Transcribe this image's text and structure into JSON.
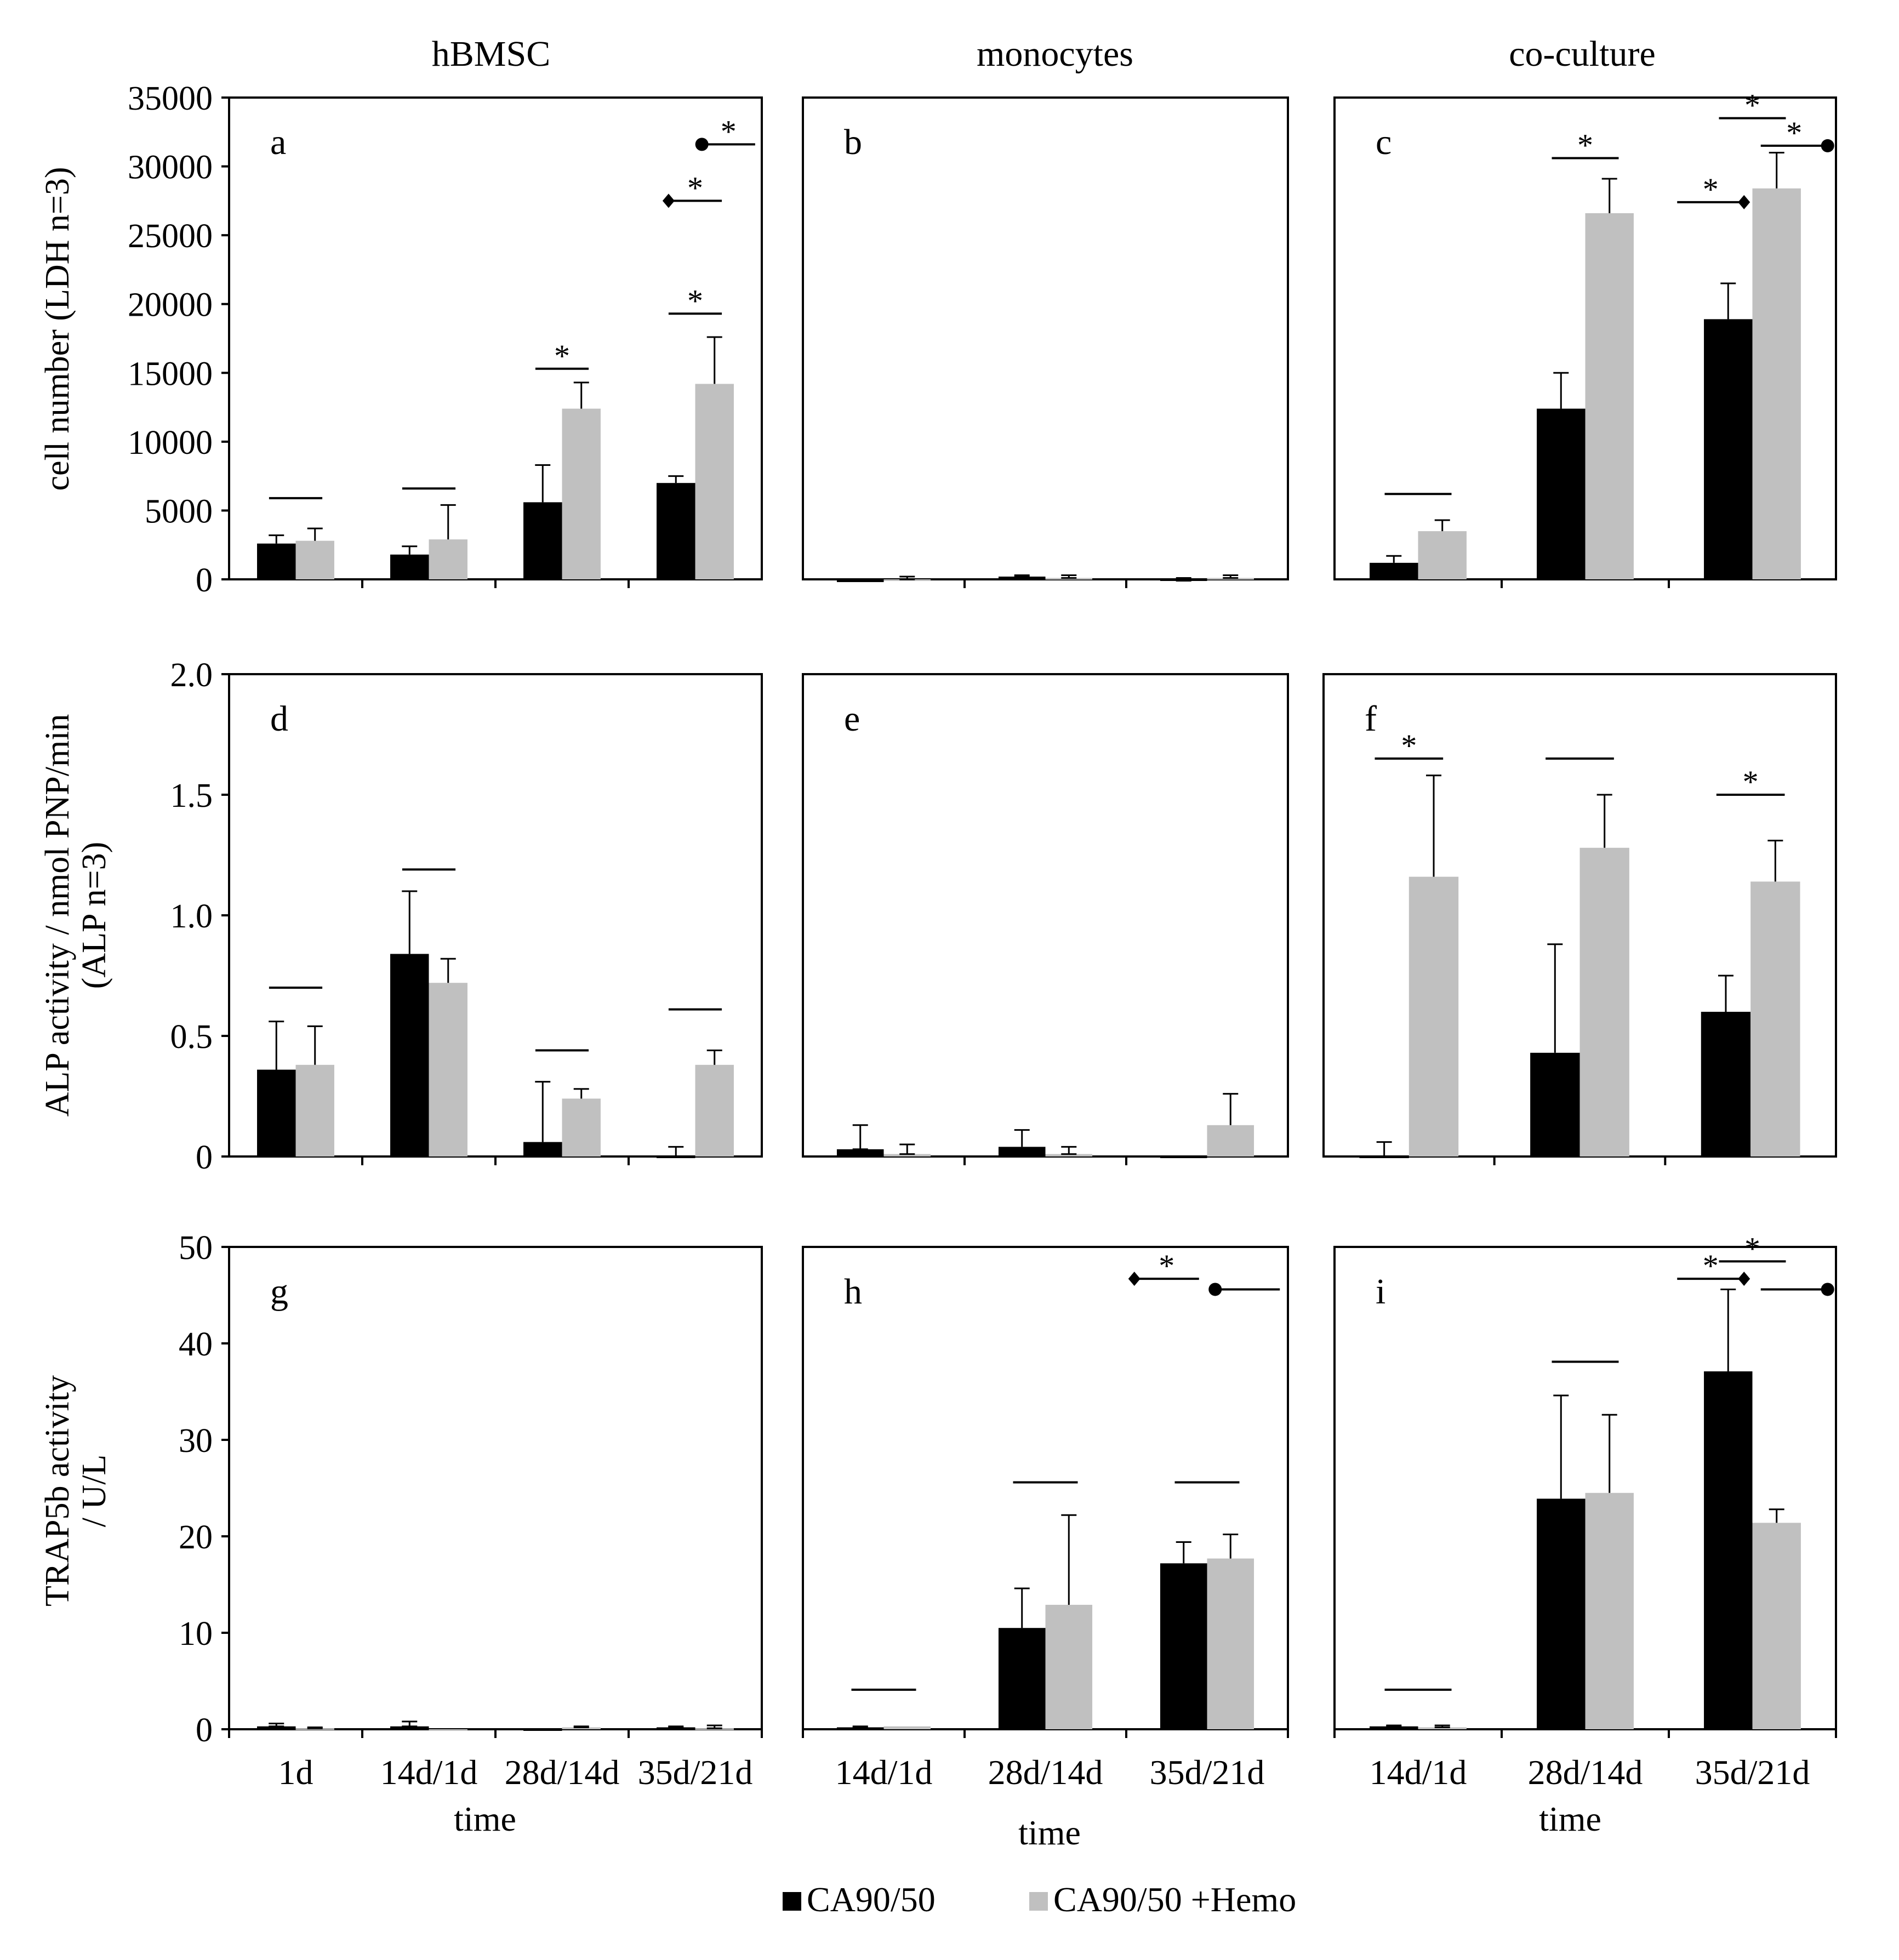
{
  "column_titles": [
    "hBMSC",
    "monocytes",
    "co-culture"
  ],
  "row_ylabels": [
    [
      "cell number (LDH n=3)"
    ],
    [
      "ALP activity / nmol PNP/min",
      "(ALP n=3)"
    ],
    [
      "TRAP5b activity",
      "/ U/L"
    ]
  ],
  "xlabel": "time",
  "legend": [
    {
      "label": "CA90/50",
      "color": "#000000"
    },
    {
      "label": "CA90/50 +Hemo",
      "color": "#c0c0c0"
    }
  ],
  "colors": {
    "series1": "#000000",
    "series2": "#c0c0c0",
    "frame": "#000000"
  },
  "chart_data": [
    {
      "type": "bar",
      "panel": "a",
      "categories": [
        "1d",
        "14d/1d",
        "28d/14d",
        "35d/21d"
      ],
      "ylim": [
        0,
        35000
      ],
      "yticks": [
        0,
        5000,
        10000,
        15000,
        20000,
        25000,
        30000,
        35000
      ],
      "series": [
        {
          "name": "CA90/50",
          "values": [
            2600,
            1800,
            5600,
            7000
          ],
          "errors": [
            600,
            600,
            2700,
            500
          ]
        },
        {
          "name": "CA90/50 +Hemo",
          "values": [
            2800,
            2900,
            12400,
            14200
          ],
          "errors": [
            900,
            2500,
            1900,
            3400
          ]
        }
      ],
      "sig": [
        {
          "cat": 0,
          "star": false,
          "y": 5900
        },
        {
          "cat": 1,
          "star": false,
          "y": 6600
        },
        {
          "cat": 2,
          "star": true,
          "y": 15300
        },
        {
          "cat": 3,
          "star": true,
          "y": 19300
        },
        {
          "cat": 3,
          "star": true,
          "y": 27500,
          "marker_left": "diamond"
        },
        {
          "cat": 3,
          "star": true,
          "y": 31600,
          "marker_left": "circle",
          "shift": 0.25
        }
      ]
    },
    {
      "type": "bar",
      "panel": "b",
      "categories": [
        "14d/1d",
        "28d/14d",
        "35d/21d"
      ],
      "ylim": [
        0,
        35000
      ],
      "yticks": [],
      "series": [
        {
          "name": "CA90/50",
          "values": [
            -200,
            200,
            -100
          ],
          "errors": [
            0,
            100,
            200
          ]
        },
        {
          "name": "CA90/50 +Hemo",
          "values": [
            0,
            100,
            100
          ],
          "errors": [
            200,
            200,
            200
          ]
        }
      ],
      "sig": []
    },
    {
      "type": "bar",
      "panel": "c",
      "categories": [
        "14d/1d",
        "28d/14d",
        "35d/21d"
      ],
      "ylim": [
        0,
        35000
      ],
      "yticks": [],
      "series": [
        {
          "name": "CA90/50",
          "values": [
            1200,
            12400,
            18900
          ],
          "errors": [
            500,
            2600,
            2600
          ]
        },
        {
          "name": "CA90/50 +Hemo",
          "values": [
            3500,
            26600,
            28400
          ],
          "errors": [
            800,
            2500,
            2600
          ]
        }
      ],
      "sig": [
        {
          "cat": 0,
          "star": false,
          "y": 6200
        },
        {
          "cat": 1,
          "star": true,
          "y": 30600
        },
        {
          "cat": 2,
          "star": true,
          "y": 27400,
          "marker_right": "diamond",
          "shift": -0.25
        },
        {
          "cat": 2,
          "star": true,
          "y": 31500,
          "marker_right": "circle",
          "shift": 0.25
        },
        {
          "cat": 2,
          "star": true,
          "y": 33500
        }
      ]
    },
    {
      "type": "bar",
      "panel": "d",
      "categories": [
        "1d",
        "14d/1d",
        "28d/14d",
        "35d/21d"
      ],
      "ylim": [
        0,
        2.0
      ],
      "yticks": [
        0,
        0.5,
        1.0,
        1.5,
        2.0
      ],
      "series": [
        {
          "name": "CA90/50",
          "values": [
            0.36,
            0.84,
            0.06,
            0.0
          ],
          "errors": [
            0.2,
            0.26,
            0.25,
            0.04
          ]
        },
        {
          "name": "CA90/50 +Hemo",
          "values": [
            0.38,
            0.72,
            0.24,
            0.38
          ],
          "errors": [
            0.16,
            0.1,
            0.04,
            0.06
          ]
        }
      ],
      "sig": [
        {
          "cat": 0,
          "star": false,
          "y": 0.7
        },
        {
          "cat": 1,
          "star": false,
          "y": 1.19
        },
        {
          "cat": 2,
          "star": false,
          "y": 0.44
        },
        {
          "cat": 3,
          "star": false,
          "y": 0.61
        }
      ]
    },
    {
      "type": "bar",
      "panel": "e",
      "categories": [
        "14d/1d",
        "28d/14d",
        "35d/21d"
      ],
      "ylim": [
        0,
        2.0
      ],
      "yticks": [],
      "series": [
        {
          "name": "CA90/50",
          "values": [
            0.03,
            0.04,
            0.0
          ],
          "errors": [
            0.1,
            0.07,
            0.0
          ]
        },
        {
          "name": "CA90/50 +Hemo",
          "values": [
            0.01,
            0.01,
            0.13
          ],
          "errors": [
            0.04,
            0.03,
            0.13
          ]
        }
      ],
      "sig": []
    },
    {
      "type": "bar",
      "panel": "f",
      "categories": [
        "14d/1d",
        "28d/14d",
        "35d/21d"
      ],
      "ylim": [
        0,
        2.0
      ],
      "yticks": [],
      "series": [
        {
          "name": "CA90/50",
          "values": [
            0.0,
            0.43,
            0.6
          ],
          "errors": [
            0.06,
            0.45,
            0.15
          ]
        },
        {
          "name": "CA90/50 +Hemo",
          "values": [
            1.16,
            1.28,
            1.14
          ],
          "errors": [
            0.42,
            0.22,
            0.17
          ]
        }
      ],
      "sig": [
        {
          "cat": 0,
          "star": true,
          "y": 1.65
        },
        {
          "cat": 1,
          "star": false,
          "y": 1.65
        },
        {
          "cat": 2,
          "star": true,
          "y": 1.5
        }
      ]
    },
    {
      "type": "bar",
      "panel": "g",
      "categories": [
        "1d",
        "14d/1d",
        "28d/14d",
        "35d/21d"
      ],
      "ylim": [
        0,
        50
      ],
      "yticks": [
        0,
        10,
        20,
        30,
        40,
        50
      ],
      "series": [
        {
          "name": "CA90/50",
          "values": [
            0.3,
            0.3,
            -0.1,
            0.2
          ],
          "errors": [
            0.3,
            0.5,
            0.0,
            0.1
          ]
        },
        {
          "name": "CA90/50 +Hemo",
          "values": [
            0.1,
            0.0,
            0.2,
            0.1
          ],
          "errors": [
            0.1,
            0.0,
            0.1,
            0.3
          ]
        }
      ],
      "sig": []
    },
    {
      "type": "bar",
      "panel": "h",
      "categories": [
        "14d/1d",
        "28d/14d",
        "35d/21d"
      ],
      "ylim": [
        0,
        50
      ],
      "yticks": [],
      "series": [
        {
          "name": "CA90/50",
          "values": [
            0.2,
            10.5,
            17.2
          ],
          "errors": [
            0.1,
            4.1,
            2.2
          ]
        },
        {
          "name": "CA90/50 +Hemo",
          "values": [
            0.3,
            12.9,
            17.7
          ],
          "errors": [
            0.0,
            9.3,
            2.5
          ]
        }
      ],
      "sig": [
        {
          "cat": 0,
          "star": false,
          "y": 4.1
        },
        {
          "cat": 1,
          "star": false,
          "y": 25.6
        },
        {
          "cat": 2,
          "star": false,
          "y": 25.6
        },
        {
          "cat": 2,
          "star": true,
          "y": 46.7,
          "marker_left": "diamond",
          "shift": -0.25
        },
        {
          "cat": 2,
          "star": false,
          "y": 45.6,
          "marker_left": "circle",
          "shift": 0.25
        }
      ]
    },
    {
      "type": "bar",
      "panel": "i",
      "categories": [
        "14d/1d",
        "28d/14d",
        "35d/21d"
      ],
      "ylim": [
        0,
        50
      ],
      "yticks": [],
      "series": [
        {
          "name": "CA90/50",
          "values": [
            0.3,
            23.9,
            37.1
          ],
          "errors": [
            0.1,
            10.7,
            8.5
          ]
        },
        {
          "name": "CA90/50 +Hemo",
          "values": [
            0.2,
            24.5,
            21.4
          ],
          "errors": [
            0.2,
            8.1,
            1.4
          ]
        }
      ],
      "sig": [
        {
          "cat": 0,
          "star": false,
          "y": 4.1
        },
        {
          "cat": 1,
          "star": false,
          "y": 38.1
        },
        {
          "cat": 2,
          "star": true,
          "y": 46.7,
          "marker_right": "diamond",
          "shift": -0.25
        },
        {
          "cat": 2,
          "star": false,
          "y": 45.6,
          "marker_right": "circle",
          "shift": 0.25
        },
        {
          "cat": 2,
          "star": true,
          "y": 48.5
        }
      ]
    }
  ]
}
